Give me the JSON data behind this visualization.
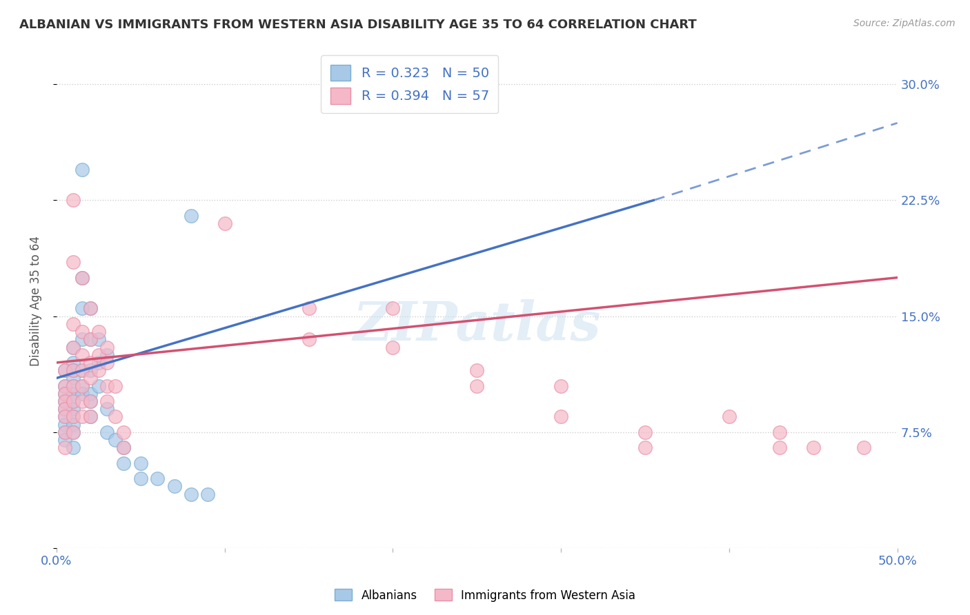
{
  "title": "ALBANIAN VS IMMIGRANTS FROM WESTERN ASIA DISABILITY AGE 35 TO 64 CORRELATION CHART",
  "source": "Source: ZipAtlas.com",
  "ylabel": "Disability Age 35 to 64",
  "xlim": [
    0.0,
    0.5
  ],
  "ylim": [
    0.0,
    0.32
  ],
  "xticks": [
    0.0,
    0.1,
    0.2,
    0.3,
    0.4,
    0.5
  ],
  "xtick_labels": [
    "0.0%",
    "",
    "",
    "",
    "",
    "50.0%"
  ],
  "yticks": [
    0.0,
    0.075,
    0.15,
    0.225,
    0.3
  ],
  "ytick_labels": [
    "",
    "7.5%",
    "15.0%",
    "22.5%",
    "30.0%"
  ],
  "legend_label_blue": "R = 0.323   N = 50",
  "legend_label_pink": "R = 0.394   N = 57",
  "scatter_blue": [
    [
      0.005,
      0.115
    ],
    [
      0.005,
      0.105
    ],
    [
      0.005,
      0.1
    ],
    [
      0.005,
      0.095
    ],
    [
      0.005,
      0.09
    ],
    [
      0.005,
      0.085
    ],
    [
      0.005,
      0.08
    ],
    [
      0.005,
      0.075
    ],
    [
      0.005,
      0.07
    ],
    [
      0.01,
      0.13
    ],
    [
      0.01,
      0.12
    ],
    [
      0.01,
      0.115
    ],
    [
      0.01,
      0.11
    ],
    [
      0.01,
      0.105
    ],
    [
      0.01,
      0.1
    ],
    [
      0.01,
      0.095
    ],
    [
      0.01,
      0.09
    ],
    [
      0.01,
      0.085
    ],
    [
      0.01,
      0.08
    ],
    [
      0.01,
      0.075
    ],
    [
      0.01,
      0.065
    ],
    [
      0.015,
      0.175
    ],
    [
      0.015,
      0.155
    ],
    [
      0.015,
      0.135
    ],
    [
      0.015,
      0.115
    ],
    [
      0.015,
      0.105
    ],
    [
      0.015,
      0.1
    ],
    [
      0.02,
      0.155
    ],
    [
      0.02,
      0.135
    ],
    [
      0.02,
      0.115
    ],
    [
      0.02,
      0.1
    ],
    [
      0.02,
      0.095
    ],
    [
      0.02,
      0.085
    ],
    [
      0.025,
      0.135
    ],
    [
      0.025,
      0.12
    ],
    [
      0.025,
      0.105
    ],
    [
      0.03,
      0.125
    ],
    [
      0.03,
      0.09
    ],
    [
      0.03,
      0.075
    ],
    [
      0.035,
      0.07
    ],
    [
      0.04,
      0.065
    ],
    [
      0.04,
      0.055
    ],
    [
      0.05,
      0.055
    ],
    [
      0.05,
      0.045
    ],
    [
      0.06,
      0.045
    ],
    [
      0.015,
      0.245
    ],
    [
      0.08,
      0.215
    ],
    [
      0.07,
      0.04
    ],
    [
      0.08,
      0.035
    ],
    [
      0.09,
      0.035
    ]
  ],
  "scatter_pink": [
    [
      0.005,
      0.115
    ],
    [
      0.005,
      0.105
    ],
    [
      0.005,
      0.1
    ],
    [
      0.005,
      0.095
    ],
    [
      0.005,
      0.09
    ],
    [
      0.005,
      0.085
    ],
    [
      0.005,
      0.075
    ],
    [
      0.005,
      0.065
    ],
    [
      0.01,
      0.225
    ],
    [
      0.01,
      0.185
    ],
    [
      0.01,
      0.145
    ],
    [
      0.01,
      0.13
    ],
    [
      0.01,
      0.115
    ],
    [
      0.01,
      0.105
    ],
    [
      0.01,
      0.095
    ],
    [
      0.01,
      0.085
    ],
    [
      0.01,
      0.075
    ],
    [
      0.015,
      0.175
    ],
    [
      0.015,
      0.14
    ],
    [
      0.015,
      0.125
    ],
    [
      0.015,
      0.115
    ],
    [
      0.015,
      0.105
    ],
    [
      0.015,
      0.095
    ],
    [
      0.015,
      0.085
    ],
    [
      0.02,
      0.155
    ],
    [
      0.02,
      0.135
    ],
    [
      0.02,
      0.12
    ],
    [
      0.02,
      0.11
    ],
    [
      0.02,
      0.095
    ],
    [
      0.02,
      0.085
    ],
    [
      0.025,
      0.14
    ],
    [
      0.025,
      0.125
    ],
    [
      0.025,
      0.115
    ],
    [
      0.03,
      0.13
    ],
    [
      0.03,
      0.12
    ],
    [
      0.03,
      0.105
    ],
    [
      0.03,
      0.095
    ],
    [
      0.035,
      0.105
    ],
    [
      0.035,
      0.085
    ],
    [
      0.04,
      0.075
    ],
    [
      0.04,
      0.065
    ],
    [
      0.1,
      0.21
    ],
    [
      0.15,
      0.155
    ],
    [
      0.15,
      0.135
    ],
    [
      0.2,
      0.155
    ],
    [
      0.2,
      0.13
    ],
    [
      0.25,
      0.115
    ],
    [
      0.25,
      0.105
    ],
    [
      0.3,
      0.105
    ],
    [
      0.3,
      0.085
    ],
    [
      0.35,
      0.075
    ],
    [
      0.35,
      0.065
    ],
    [
      0.4,
      0.085
    ],
    [
      0.43,
      0.075
    ],
    [
      0.43,
      0.065
    ],
    [
      0.45,
      0.065
    ],
    [
      0.48,
      0.065
    ]
  ],
  "blue_line": {
    "x": [
      0.0,
      0.355
    ],
    "y": [
      0.11,
      0.225
    ]
  },
  "blue_dash": {
    "x": [
      0.355,
      0.5
    ],
    "y": [
      0.225,
      0.275
    ]
  },
  "pink_line": {
    "x": [
      0.0,
      0.5
    ],
    "y": [
      0.12,
      0.175
    ]
  },
  "blue_color": "#a8c8e8",
  "blue_edge_color": "#7aaed0",
  "pink_color": "#f5b8c8",
  "pink_edge_color": "#e890a8",
  "blue_line_color": "#4472c4",
  "pink_line_color": "#d45070",
  "grid_color": "#cccccc",
  "background_color": "#ffffff",
  "watermark_text": "ZIPatlas",
  "watermark_color": "#c8dff0"
}
